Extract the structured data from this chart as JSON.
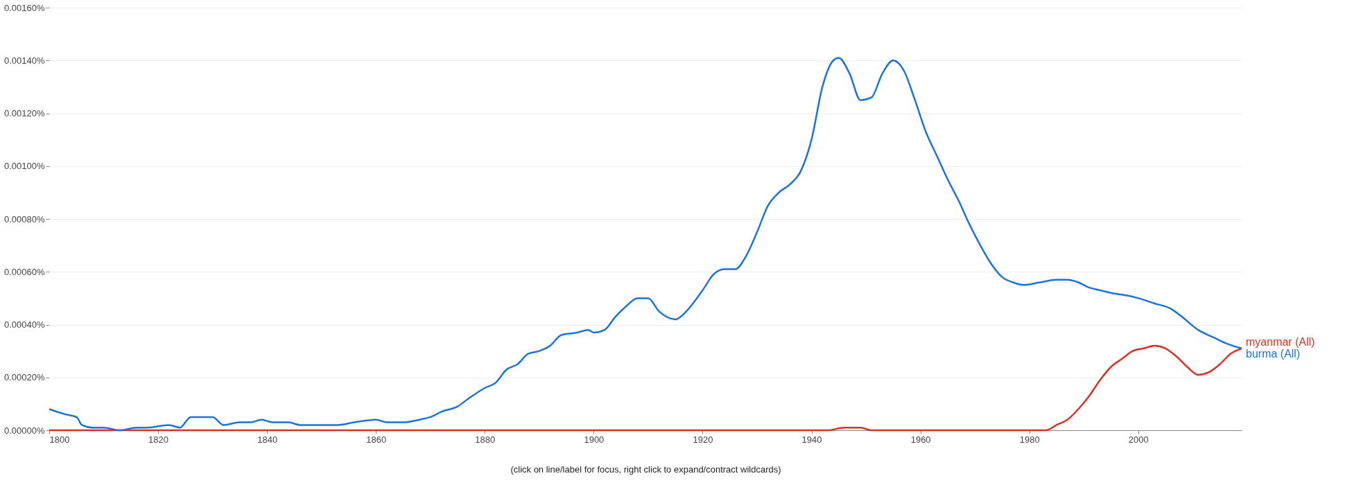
{
  "chart_data": {
    "type": "line",
    "xlabel": "(click on line/label for focus, right click to expand/contract wildcards)",
    "xlim": [
      1800,
      2019
    ],
    "xticks": [
      1800,
      1820,
      1840,
      1860,
      1880,
      1900,
      1920,
      1940,
      1960,
      1980,
      2000
    ],
    "ylim": [
      0,
      0.0016
    ],
    "yticks": [
      {
        "value": 0,
        "label": "0.00000%"
      },
      {
        "value": 0.0002,
        "label": "0.00020%"
      },
      {
        "value": 0.0004,
        "label": "0.00040%"
      },
      {
        "value": 0.0006,
        "label": "0.00060%"
      },
      {
        "value": 0.0008,
        "label": "0.00080%"
      },
      {
        "value": 0.001,
        "label": "0.00100%"
      },
      {
        "value": 0.0012,
        "label": "0.00120%"
      },
      {
        "value": 0.0014,
        "label": "0.00140%"
      },
      {
        "value": 0.0016,
        "label": "0.00160%"
      }
    ],
    "grid": "y",
    "legend": false,
    "marker": "none",
    "line_style": "solid",
    "series": [
      {
        "name": "myanmar (All)",
        "color": "#d93025",
        "x": [
          1800,
          1940,
          1943,
          1946,
          1949,
          1951,
          1960,
          1980,
          1983,
          1985,
          1987,
          1989,
          1991,
          1993,
          1995,
          1997,
          1999,
          2001,
          2003,
          2005,
          2007,
          2009,
          2011,
          2013,
          2015,
          2017,
          2019
        ],
        "values": [
          0,
          0,
          0,
          1e-05,
          1e-05,
          0,
          0,
          0,
          0,
          2e-05,
          4e-05,
          8e-05,
          0.00013,
          0.00019,
          0.00024,
          0.00027,
          0.0003,
          0.00031,
          0.00032,
          0.00031,
          0.00028,
          0.00024,
          0.00021,
          0.00022,
          0.00025,
          0.00029,
          0.00031
        ]
      },
      {
        "name": "burma (All)",
        "color": "#1a73d9",
        "x": [
          1800,
          1803,
          1805,
          1806,
          1808,
          1810,
          1813,
          1816,
          1818,
          1822,
          1824,
          1826,
          1830,
          1832,
          1835,
          1837,
          1839,
          1841,
          1844,
          1846,
          1850,
          1853,
          1856,
          1860,
          1862,
          1865,
          1868,
          1870,
          1872,
          1875,
          1877,
          1880,
          1882,
          1884,
          1886,
          1888,
          1890,
          1892,
          1894,
          1897,
          1899,
          1900,
          1902,
          1904,
          1906,
          1908,
          1910,
          1912,
          1915,
          1917,
          1920,
          1922,
          1924,
          1926,
          1928,
          1930,
          1932,
          1934,
          1936,
          1938,
          1940,
          1942,
          1944,
          1945,
          1947,
          1949,
          1951,
          1953,
          1955,
          1957,
          1959,
          1961,
          1963,
          1965,
          1967,
          1969,
          1971,
          1973,
          1975,
          1977,
          1979,
          1982,
          1985,
          1987,
          1989,
          1991,
          1993,
          1995,
          1998,
          2000,
          2003,
          2006,
          2008,
          2011,
          2014,
          2016,
          2019
        ],
        "values": [
          8e-05,
          6e-05,
          5e-05,
          2e-05,
          1e-05,
          1e-05,
          0,
          1e-05,
          1e-05,
          2e-05,
          1e-05,
          5e-05,
          5e-05,
          2e-05,
          3e-05,
          3e-05,
          4e-05,
          3e-05,
          3e-05,
          2e-05,
          2e-05,
          2e-05,
          3e-05,
          4e-05,
          3e-05,
          3e-05,
          4e-05,
          5e-05,
          7e-05,
          9e-05,
          0.00012,
          0.00016,
          0.00018,
          0.00023,
          0.00025,
          0.00029,
          0.0003,
          0.00032,
          0.00036,
          0.00037,
          0.00038,
          0.00037,
          0.00038,
          0.00043,
          0.00047,
          0.0005,
          0.0005,
          0.00045,
          0.00042,
          0.00045,
          0.00053,
          0.00059,
          0.00061,
          0.00061,
          0.00066,
          0.00075,
          0.00085,
          0.0009,
          0.00093,
          0.00098,
          0.0011,
          0.0013,
          0.0014,
          0.00141,
          0.00135,
          0.00125,
          0.00126,
          0.00135,
          0.0014,
          0.00136,
          0.00125,
          0.00113,
          0.00104,
          0.00095,
          0.00087,
          0.00078,
          0.0007,
          0.00063,
          0.00058,
          0.00056,
          0.00055,
          0.00056,
          0.00057,
          0.00057,
          0.00056,
          0.00054,
          0.00053,
          0.00052,
          0.00051,
          0.0005,
          0.00048,
          0.00046,
          0.00043,
          0.00038,
          0.00035,
          0.00033,
          0.00031
        ]
      }
    ]
  }
}
